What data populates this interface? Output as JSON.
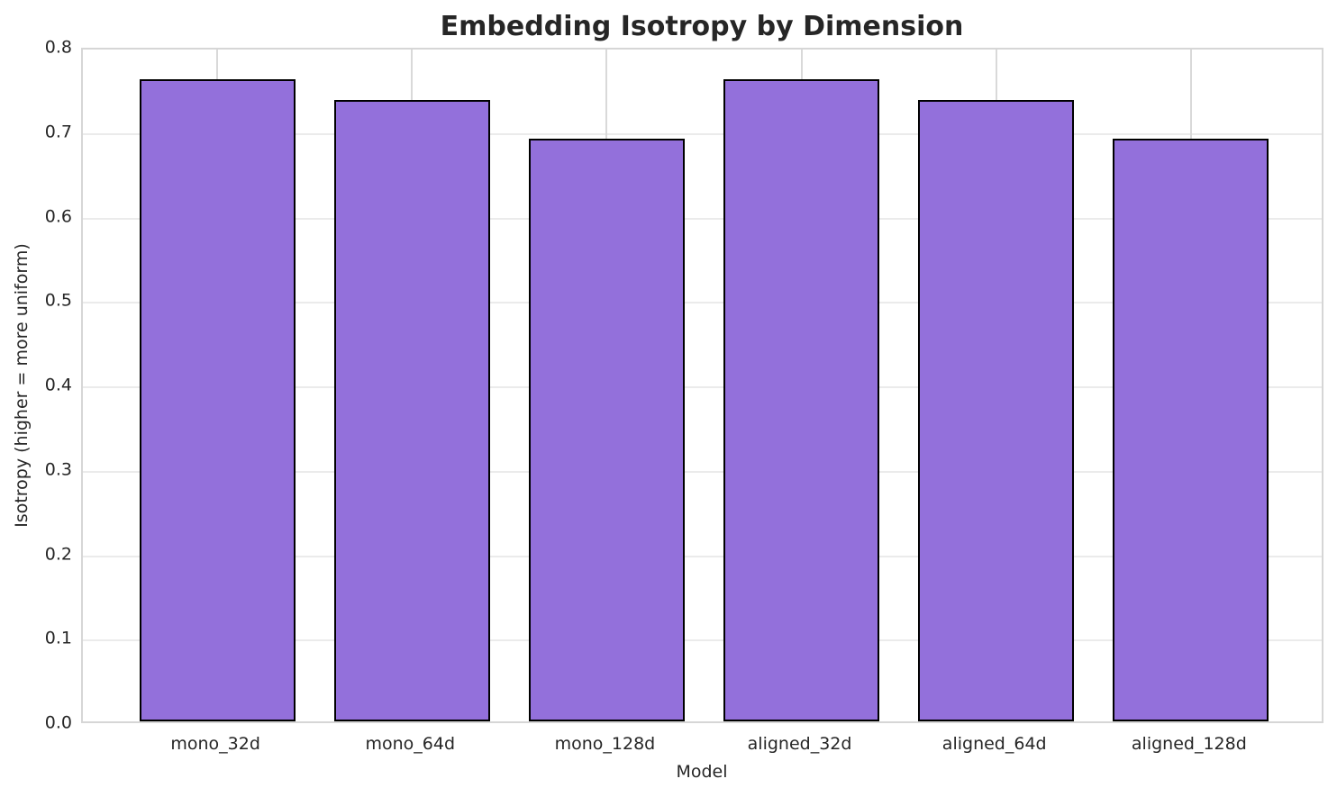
{
  "chart_data": {
    "type": "bar",
    "title": "Embedding Isotropy by Dimension",
    "xlabel": "Model",
    "ylabel": "Isotropy (higher = more uniform)",
    "categories": [
      "mono_32d",
      "mono_64d",
      "mono_128d",
      "aligned_32d",
      "aligned_64d",
      "aligned_128d"
    ],
    "values": [
      0.761,
      0.736,
      0.69,
      0.761,
      0.736,
      0.69
    ],
    "ylim": [
      0.0,
      0.8
    ],
    "y_ticks": [
      0.0,
      0.1,
      0.2,
      0.3,
      0.4,
      0.5,
      0.6,
      0.7,
      0.8
    ],
    "y_tick_labels": [
      "0.0",
      "0.1",
      "0.2",
      "0.3",
      "0.4",
      "0.5",
      "0.6",
      "0.7",
      "0.8"
    ],
    "grid": true,
    "legend_position": "none",
    "colors": {
      "bar_fill": "#9370DB",
      "bar_edge": "#000000",
      "h_grid": "#ebebeb",
      "v_grid": "#d9d9d9",
      "spine": "#d6d6d6",
      "text": "#262626"
    }
  }
}
